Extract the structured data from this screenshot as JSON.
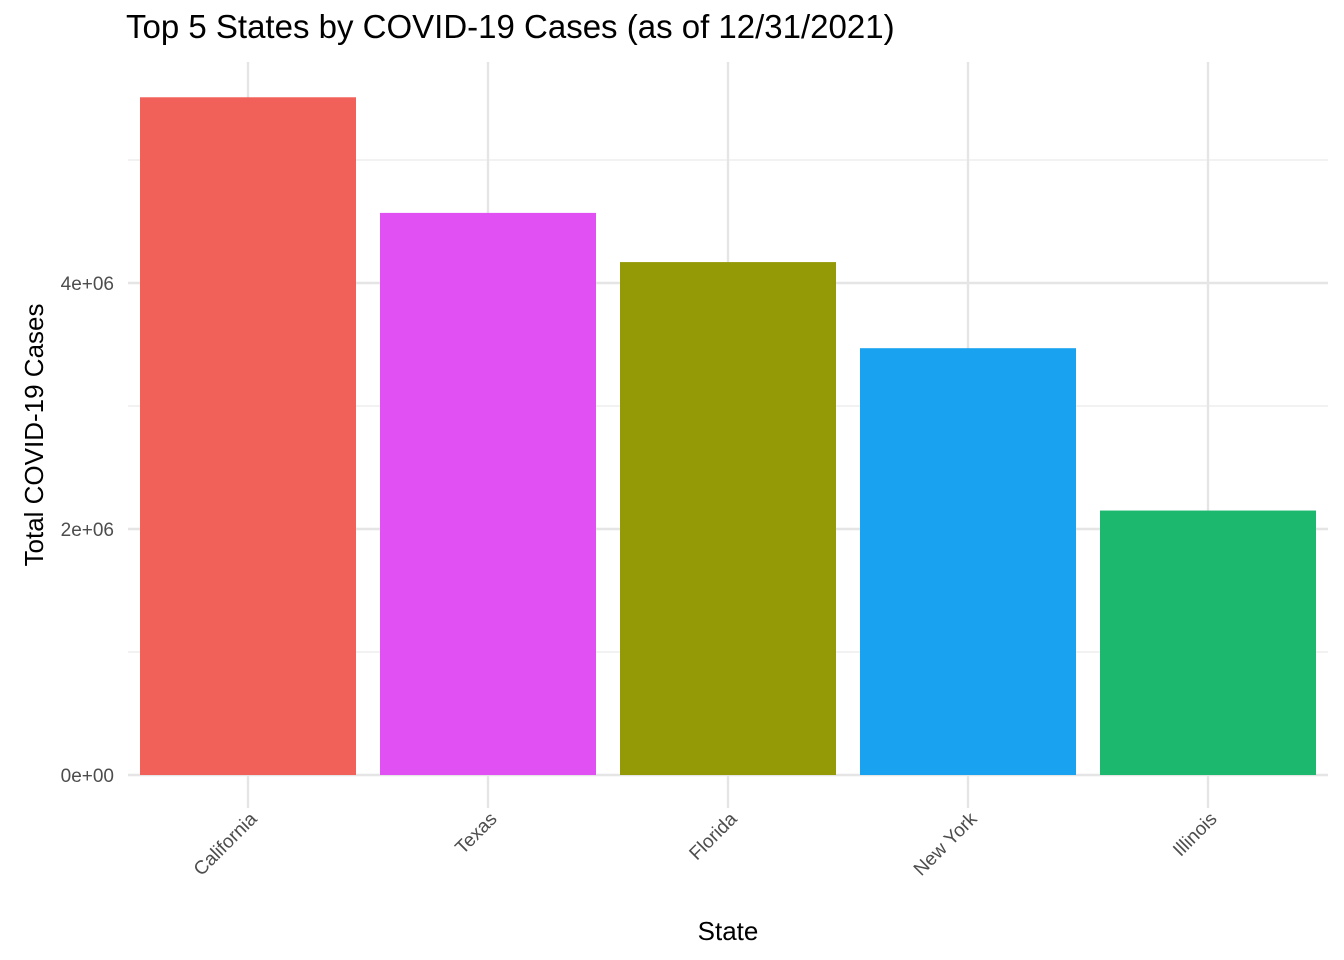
{
  "chart_data": {
    "type": "bar",
    "title": "Top 5 States by COVID-19 Cases (as of 12/31/2021)",
    "xlabel": "State",
    "ylabel": "Total COVID-19 Cases",
    "categories": [
      "California",
      "Texas",
      "Florida",
      "New York",
      "Illinois"
    ],
    "values": [
      5510000,
      4570000,
      4170000,
      3470000,
      2150000
    ],
    "colors": [
      "#F8766D",
      "#E76BF3",
      "#A3A500",
      "#00B0F6",
      "#00BF7D"
    ],
    "bar_colors_rendered": [
      "#F2605A",
      "#E050F2",
      "#939A05",
      "#18A2F0",
      "#1BB86E"
    ],
    "ylim": [
      0,
      5780000
    ],
    "yticks": [
      0,
      2000000,
      4000000
    ],
    "ytick_labels": [
      "0e+00",
      "2e+06",
      "4e+06"
    ],
    "grid": true,
    "legend": "none"
  }
}
